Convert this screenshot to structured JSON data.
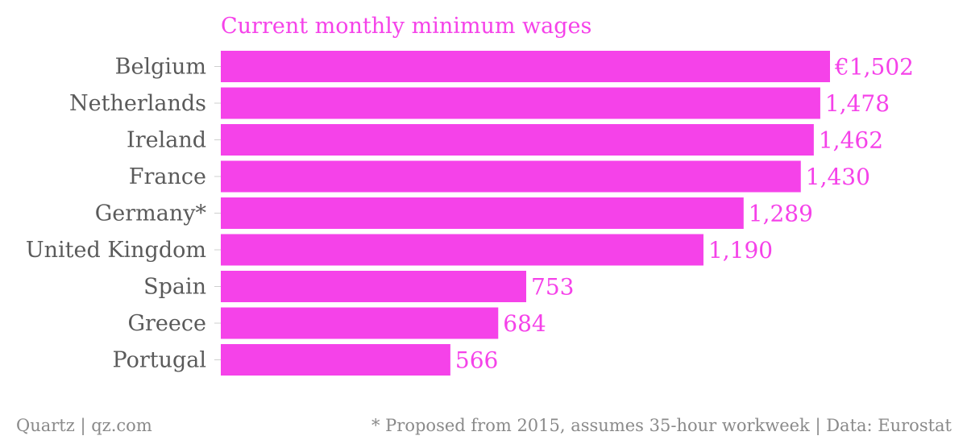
{
  "chart_data": {
    "type": "bar",
    "orientation": "horizontal",
    "title": "Current monthly minimum wages",
    "categories": [
      "Belgium",
      "Netherlands",
      "Ireland",
      "France",
      "Germany*",
      "United Kingdom",
      "Spain",
      "Greece",
      "Portugal"
    ],
    "values": [
      1502,
      1478,
      1462,
      1430,
      1289,
      1190,
      753,
      684,
      566
    ],
    "value_labels": [
      "€1,502",
      "1,478",
      "1,462",
      "1,430",
      "1,289",
      "1,190",
      "753",
      "684",
      "566"
    ],
    "xlim": [
      0,
      1502
    ],
    "grid": false,
    "legend": "none",
    "bar_color": "#f542e9"
  },
  "footer": {
    "source_left": "Quartz | qz.com",
    "note_right": "* Proposed from 2015, assumes 35-hour workweek | Data: Eurostat"
  },
  "colors": {
    "accent": "#f542e9",
    "category_text": "#5a5a5a",
    "footer_text": "#8a8a8a"
  }
}
